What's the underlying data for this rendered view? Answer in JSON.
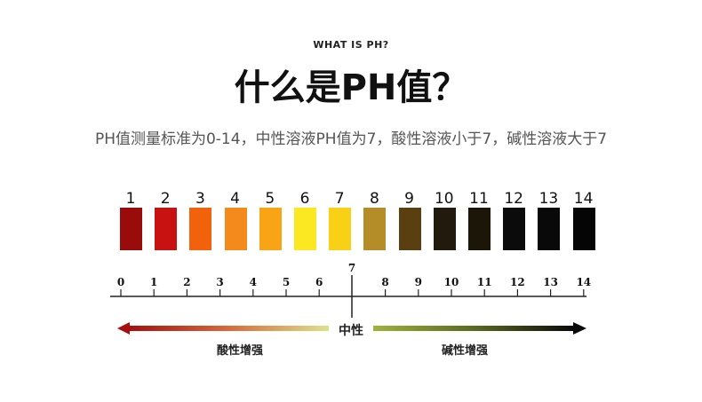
{
  "header": {
    "eyebrow": "WHAT IS PH?",
    "title": "什么是PH值？",
    "description": "PH值测量标准为0-14，中性溶液PH值为7，酸性溶液小于7，碱性溶液大于7"
  },
  "strips": [
    {
      "label": "1",
      "color": "#9a0b0b"
    },
    {
      "label": "2",
      "color": "#c81212"
    },
    {
      "label": "3",
      "color": "#f2620c"
    },
    {
      "label": "4",
      "color": "#f58a1c"
    },
    {
      "label": "5",
      "color": "#f8a414"
    },
    {
      "label": "6",
      "color": "#fbe823"
    },
    {
      "label": "7",
      "color": "#f8d116"
    },
    {
      "label": "8",
      "color": "#b58d28"
    },
    {
      "label": "9",
      "color": "#5a4010"
    },
    {
      "label": "10",
      "color": "#221a0d"
    },
    {
      "label": "11",
      "color": "#1c1608"
    },
    {
      "label": "12",
      "color": "#0b0b0b"
    },
    {
      "label": "13",
      "color": "#090909"
    },
    {
      "label": "14",
      "color": "#050505"
    }
  ],
  "scale": {
    "ticks": [
      "0",
      "1",
      "2",
      "3",
      "4",
      "5",
      "6",
      "7",
      "8",
      "9",
      "10",
      "11",
      "12",
      "13",
      "14"
    ]
  },
  "gradient": {
    "neutral_label": "中性",
    "acid_label": "酸性增强",
    "base_label": "碱性增强",
    "acid_colors": [
      "#a50f0f",
      "#d86a3a",
      "#dde28a"
    ],
    "base_colors": [
      "#9fb33a",
      "#5a6a20",
      "#0a0a0a"
    ]
  }
}
